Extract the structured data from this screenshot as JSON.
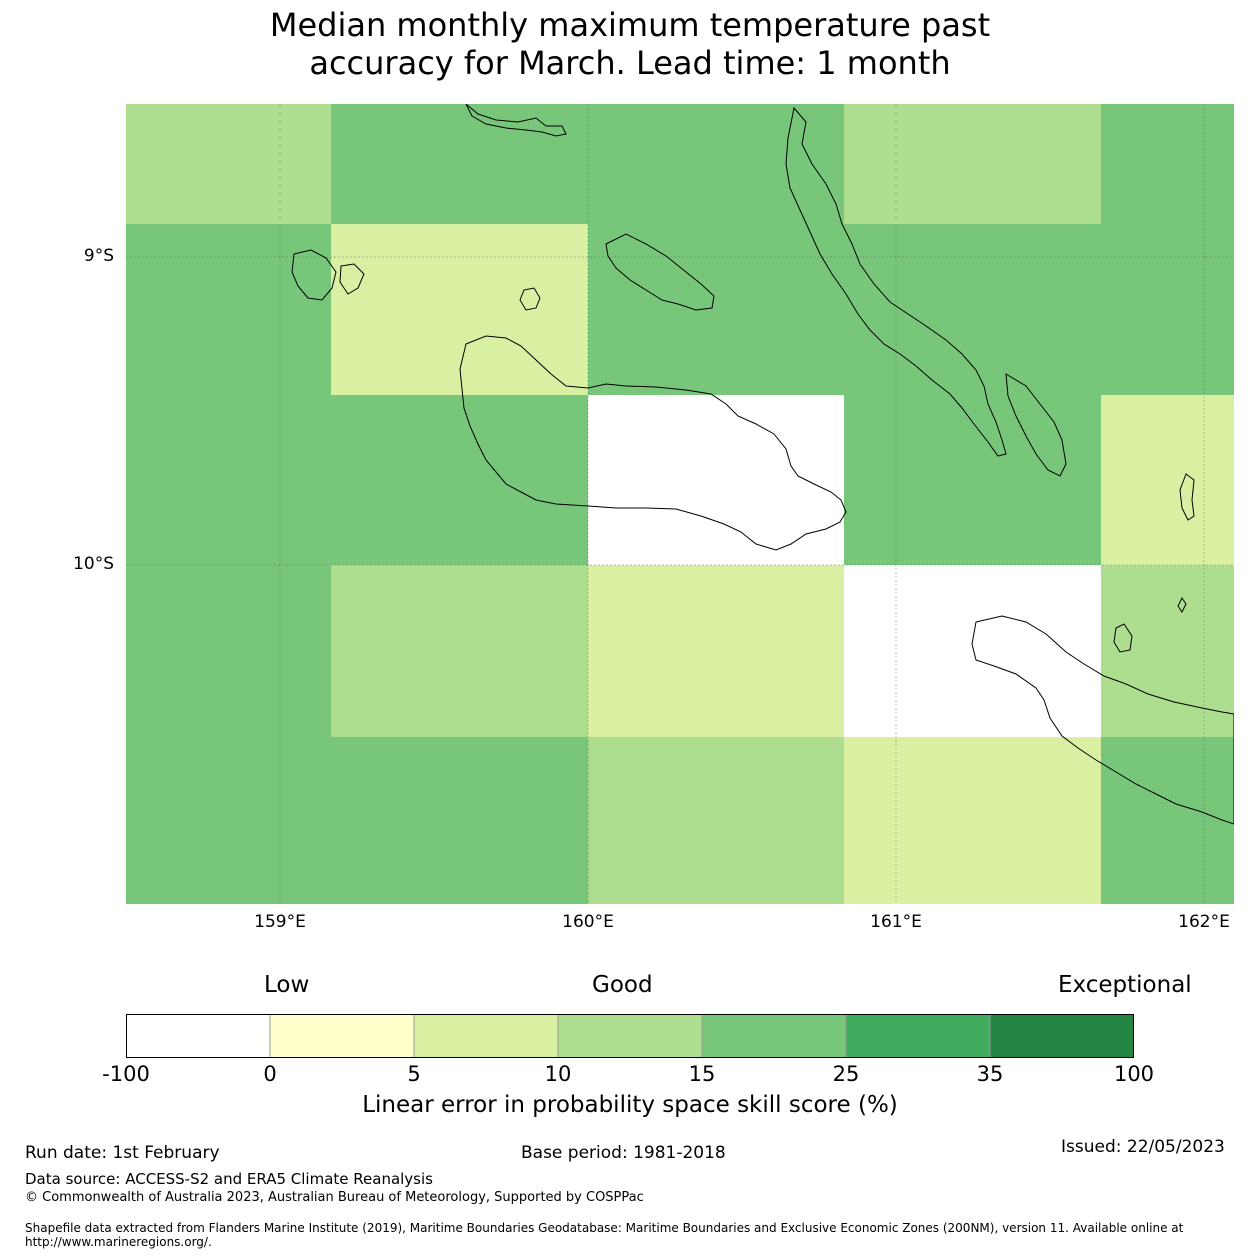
{
  "title_line1": "Median monthly maximum temperature past",
  "title_line2": "accuracy for March. Lead time: 1 month",
  "map": {
    "lat_labels": [
      "9°S",
      "10°S"
    ],
    "lon_labels": [
      "159°E",
      "160°E",
      "161°E",
      "162°E"
    ],
    "colors": {
      "band_-100_0": "#ffffff",
      "band_0_5": "#ffffcc",
      "band_5_10": "#d9f0a3",
      "band_10_15": "#addd8e",
      "band_15_25": "#78c679",
      "band_25_35": "#41ab5d",
      "band_35_100": "#238443"
    }
  },
  "colorbar": {
    "categories": [
      "Low",
      "Good",
      "Exceptional"
    ],
    "ticks": [
      "-100",
      "0",
      "5",
      "10",
      "15",
      "25",
      "35",
      "100"
    ],
    "colors": [
      "#ffffff",
      "#ffffcc",
      "#d9f0a3",
      "#addd8e",
      "#78c679",
      "#41ab5d",
      "#238443"
    ],
    "label": "Linear error in probability space skill score (%)"
  },
  "footer": {
    "run_date": "Run date: 1st February",
    "base_period": "Base period: 1981-2018",
    "issued": "Issued: 22/05/2023",
    "data_source": "Data source: ACCESS-S2 and ERA5 Climate Reanalysis",
    "copyright": "© Commonwealth of Australia 2023, Australian Bureau of Meteorology, Supported by COSPPac",
    "shapefile": "Shapefile data extracted from Flanders Marine Institute (2019), Maritime Boundaries Geodatabase: Maritime Boundaries and Exclusive Economic Zones (200NM), version 11. Available online at http://www.marineregions.org/."
  }
}
